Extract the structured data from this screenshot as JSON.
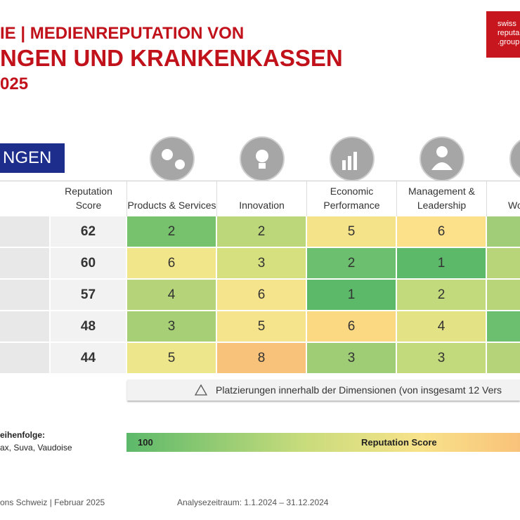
{
  "header": {
    "title_line_1": "IE | MEDIENREPUTATION VON",
    "title_line_2": "NGEN UND KRANKENKASSEN",
    "title_line_3": "025",
    "logo": [
      "swiss",
      "reputa",
      ".group"
    ],
    "badge": "NGEN"
  },
  "table": {
    "columns": [
      "Reputation Score",
      "Products & Services",
      "Innovation",
      "Economic Performance",
      "Management & Leadership",
      "Wo"
    ],
    "rows": [
      [
        "62",
        "2",
        "2",
        "5",
        "6"
      ],
      [
        "60",
        "6",
        "3",
        "2",
        "1"
      ],
      [
        "57",
        "4",
        "6",
        "1",
        "2"
      ],
      [
        "48",
        "3",
        "5",
        "6",
        "4"
      ],
      [
        "44",
        "5",
        "8",
        "3",
        "3"
      ]
    ]
  },
  "note": "Platzierungen innerhalb der Dimensionen (von insgesamt 12 Vers",
  "order": {
    "label": "eihenfolge:",
    "text": "ax, Suva, Vaudoise"
  },
  "legend": {
    "max": "100",
    "label": "Reputation Score"
  },
  "footer": {
    "source": "ons Schweiz | Februar 2025",
    "period": "Analysezeitraum: 1.1.2024 – 31.12.2024"
  }
}
